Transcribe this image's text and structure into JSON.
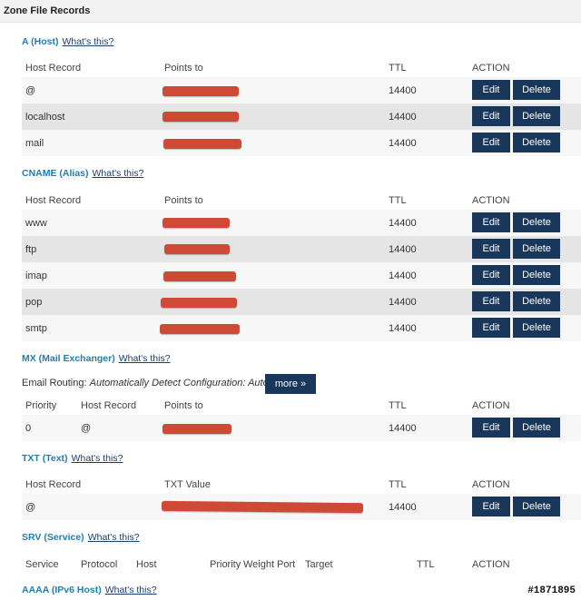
{
  "page_title": "Zone File Records",
  "whats_this": "What's this?",
  "a_section": {
    "title": "A (Host)",
    "headers": [
      "Host Record",
      "Points to",
      "TTL",
      "ACTION"
    ],
    "rows": [
      {
        "host": "@",
        "ttl": "14400"
      },
      {
        "host": "localhost",
        "ttl": "14400"
      },
      {
        "host": "mail",
        "ttl": "14400"
      }
    ]
  },
  "cname_section": {
    "title": "CNAME (Alias)",
    "headers": [
      "Host Record",
      "Points to",
      "TTL",
      "ACTION"
    ],
    "rows": [
      {
        "host": "www",
        "ttl": "14400"
      },
      {
        "host": "ftp",
        "ttl": "14400"
      },
      {
        "host": "imap",
        "ttl": "14400"
      },
      {
        "host": "pop",
        "ttl": "14400"
      },
      {
        "host": "smtp",
        "ttl": "14400"
      }
    ]
  },
  "mx_section": {
    "title": "MX (Mail Exchanger)",
    "routing_label": "Email Routing:",
    "routing_value": "Automatically Detect Configuration: Auto",
    "more_label": "more »",
    "headers": [
      "Priority",
      "Host Record",
      "Points to",
      "TTL",
      "ACTION"
    ],
    "rows": [
      {
        "priority": "0",
        "host": "@",
        "ttl": "14400"
      }
    ]
  },
  "txt_section": {
    "title": "TXT (Text)",
    "headers": [
      "Host Record",
      "TXT Value",
      "TTL",
      "ACTION"
    ],
    "rows": [
      {
        "host": "@",
        "ttl": "14400"
      }
    ]
  },
  "srv_section": {
    "title": "SRV (Service)",
    "headers": [
      "Service",
      "Protocol",
      "Host",
      "Priority",
      "Weight",
      "Port",
      "Target",
      "TTL",
      "ACTION"
    ]
  },
  "aaaa_section": {
    "title": "AAAA (IPv6 Host)"
  },
  "buttons": {
    "edit": "Edit",
    "delete": "Delete"
  },
  "watermark": "#1871895",
  "colors": {
    "title": "#1f7fae",
    "button": "#18375a",
    "redaction": "#cf4a36",
    "row_alt": "#e5e5e5"
  }
}
